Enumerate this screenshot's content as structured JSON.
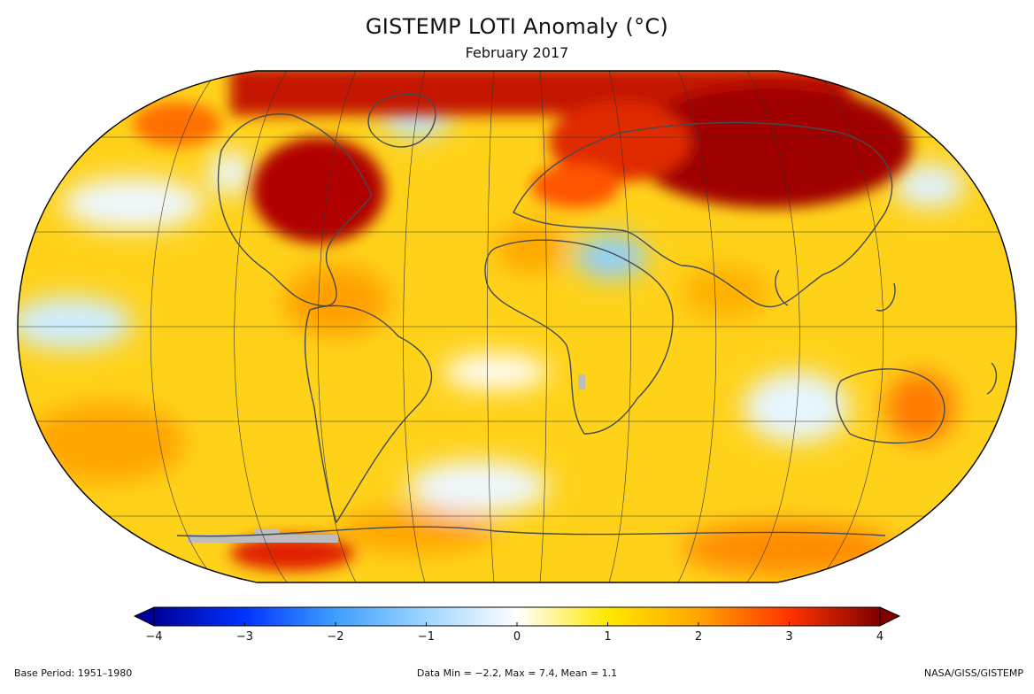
{
  "header": {
    "title": "GISTEMP LOTI Anomaly (°C)",
    "subtitle": "February 2017"
  },
  "colorbar": {
    "ticks": [
      "−4",
      "−3",
      "−2",
      "−1",
      "0",
      "1",
      "2",
      "3",
      "4"
    ],
    "range": [
      -4,
      4
    ],
    "colors": [
      "#000099",
      "#0033ff",
      "#3f9fff",
      "#9fd6ff",
      "#ffffff",
      "#ffe800",
      "#ffa500",
      "#ff3300",
      "#800000"
    ]
  },
  "footer": {
    "base_period": "Base Period: 1951–1980",
    "stats": "Data Min = −2.2, Max = 7.4, Mean = 1.1",
    "credit": "NASA/GISS/GISTEMP"
  },
  "map": {
    "projection": "Robinson",
    "background_anomaly_color": "#ffd21a",
    "missing_data_color": "#bdbdbd",
    "coastline_color": "#444a55",
    "gridline_color": "#333333"
  }
}
